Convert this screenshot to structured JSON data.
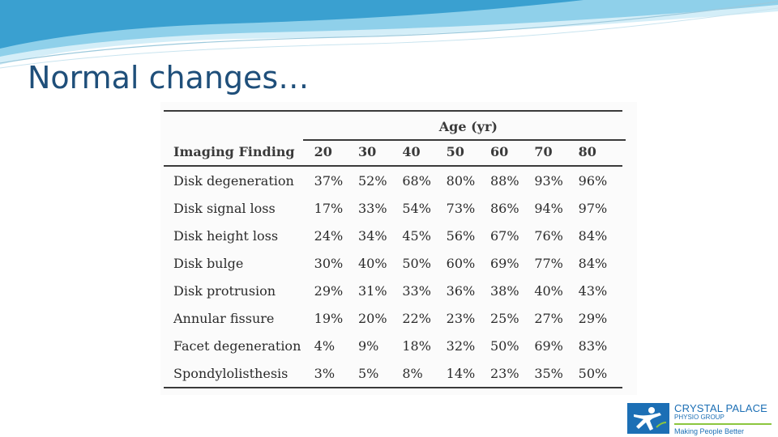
{
  "slide": {
    "title": "Normal changes…"
  },
  "table": {
    "group_header": "Age (yr)",
    "columns": [
      "Imaging Finding",
      "20",
      "30",
      "40",
      "50",
      "60",
      "70",
      "80"
    ],
    "rows": [
      {
        "finding": "Disk degeneration",
        "values": [
          "37%",
          "52%",
          "68%",
          "80%",
          "88%",
          "93%",
          "96%"
        ]
      },
      {
        "finding": "Disk signal loss",
        "values": [
          "17%",
          "33%",
          "54%",
          "73%",
          "86%",
          "94%",
          "97%"
        ]
      },
      {
        "finding": "Disk height loss",
        "values": [
          "24%",
          "34%",
          "45%",
          "56%",
          "67%",
          "76%",
          "84%"
        ]
      },
      {
        "finding": "Disk bulge",
        "values": [
          "30%",
          "40%",
          "50%",
          "60%",
          "69%",
          "77%",
          "84%"
        ]
      },
      {
        "finding": "Disk protrusion",
        "values": [
          "29%",
          "31%",
          "33%",
          "36%",
          "38%",
          "40%",
          "43%"
        ]
      },
      {
        "finding": "Annular fissure",
        "values": [
          "19%",
          "20%",
          "22%",
          "23%",
          "25%",
          "27%",
          "29%"
        ]
      },
      {
        "finding": "Facet degeneration",
        "values": [
          "4%",
          "9%",
          "18%",
          "32%",
          "50%",
          "69%",
          "83%"
        ]
      },
      {
        "finding": "Spondylolisthesis",
        "values": [
          "3%",
          "5%",
          "8%",
          "14%",
          "23%",
          "35%",
          "50%"
        ]
      }
    ]
  },
  "logo": {
    "name": "CRYSTAL PALACE",
    "subname": "PHYSIO GROUP",
    "tagline": "Making People Better",
    "icon": "running-figure-icon"
  },
  "colors": {
    "title": "#1f4f7a",
    "swoosh_dark": "#3aa0d0",
    "swoosh_light": "#bfe3f2",
    "brand_blue": "#1c6fb5",
    "brand_green": "#8cc63f"
  }
}
